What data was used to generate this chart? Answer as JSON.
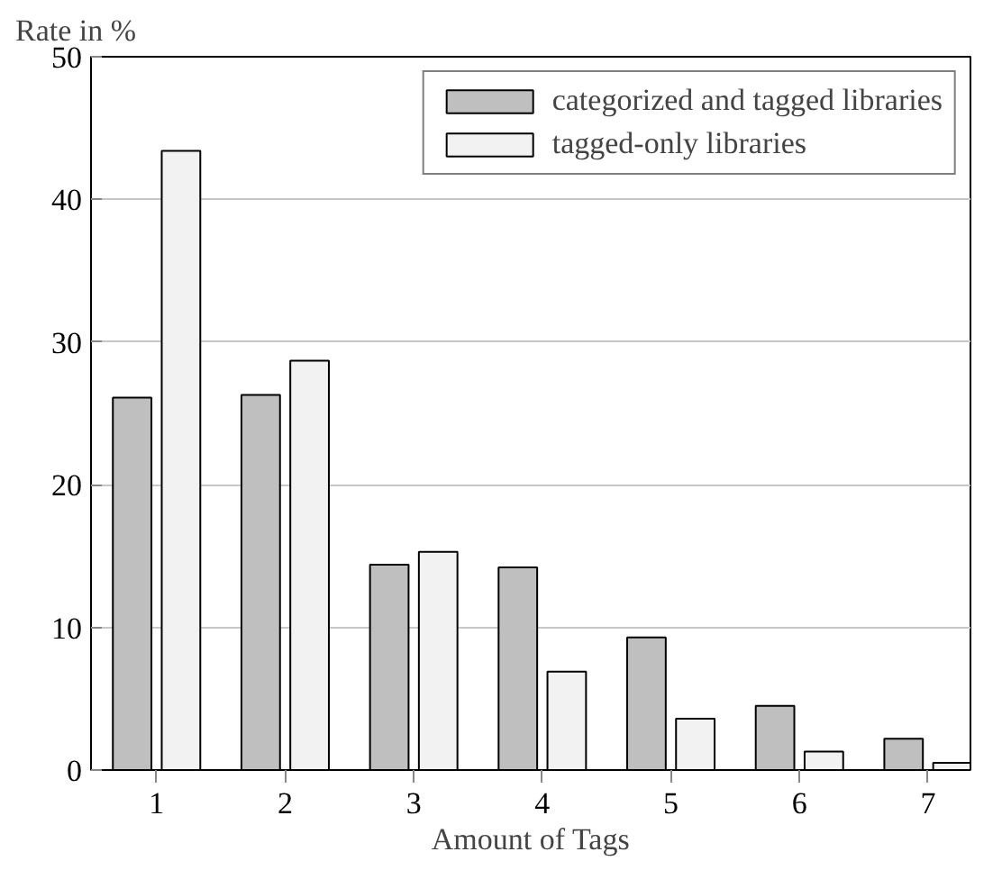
{
  "chart_data": {
    "type": "bar",
    "xlabel": "Amount of Tags",
    "ylabel": "Rate in %",
    "categories": [
      "1",
      "2",
      "3",
      "4",
      "5",
      "6",
      "7"
    ],
    "series": [
      {
        "name": "categorized and tagged libraries",
        "color": "#bfbfbf",
        "values": [
          26.1,
          26.3,
          14.4,
          14.2,
          9.3,
          4.5,
          2.2
        ]
      },
      {
        "name": "tagged-only libraries",
        "color": "#f2f2f2",
        "values": [
          43.4,
          28.7,
          15.3,
          6.9,
          3.6,
          1.3,
          0.5
        ]
      }
    ],
    "ylim": [
      0,
      50
    ],
    "yticks": [
      0,
      10,
      20,
      30,
      40,
      50
    ],
    "grid": "y",
    "legend": "top right"
  }
}
